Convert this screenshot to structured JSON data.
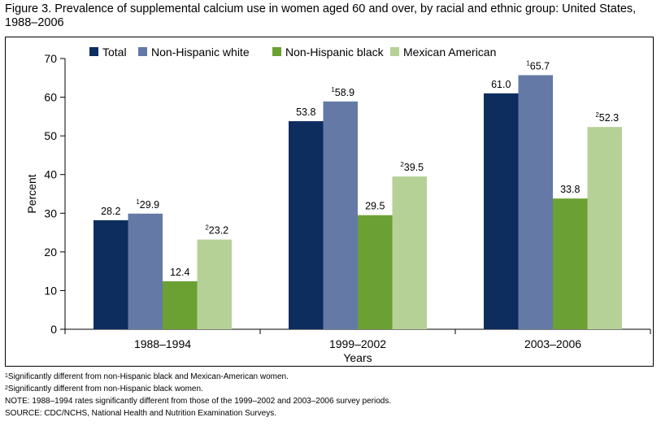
{
  "title": "Figure 3. Prevalence of supplemental calcium use in women aged 60 and over, by racial and ethnic group: United States, 1988–2006",
  "chart_data": {
    "type": "bar",
    "title": "Figure 3. Prevalence of supplemental calcium use in women aged 60 and over, by racial and ethnic group: United States, 1988–2006",
    "xlabel": "Years",
    "ylabel": "Percent",
    "ylim": [
      0,
      70
    ],
    "yticks": [
      0,
      10,
      20,
      30,
      40,
      50,
      60,
      70
    ],
    "grid": false,
    "legend_position": "top",
    "categories": [
      "1988–1994",
      "1999–2002",
      "2003–2006"
    ],
    "series": [
      {
        "name": "Total",
        "color": "#0c2d5e",
        "values": [
          28.2,
          53.8,
          61.0
        ],
        "labels": [
          "28.2",
          "53.8",
          "61.0"
        ],
        "marks": [
          "",
          "",
          ""
        ]
      },
      {
        "name": "Non-Hispanic white",
        "color": "#6479a6",
        "values": [
          29.9,
          58.9,
          65.7
        ],
        "labels": [
          "29.9",
          "58.9",
          "65.7"
        ],
        "marks": [
          "1",
          "1",
          "1"
        ]
      },
      {
        "name": "Non-Hispanic black",
        "color": "#6aa132",
        "values": [
          12.4,
          29.5,
          33.8
        ],
        "labels": [
          "12.4",
          "29.5",
          "33.8"
        ],
        "marks": [
          "",
          "",
          ""
        ]
      },
      {
        "name": "Mexican American",
        "color": "#b6d196",
        "values": [
          23.2,
          39.5,
          52.3
        ],
        "labels": [
          "23.2",
          "39.5",
          "52.3"
        ],
        "marks": [
          "2",
          "2",
          "2"
        ]
      }
    ]
  },
  "footnotes": [
    {
      "mark": "1",
      "text": "Significantly different from non-Hispanic black and Mexican-American women."
    },
    {
      "mark": "2",
      "text": "Significantly different from non-Hispanic black women."
    },
    {
      "mark": "",
      "text": "NOTE: 1988–1994 rates significantly different from those of the 1999–2002 and 2003–2006 survey periods."
    },
    {
      "mark": "",
      "text": "SOURCE: CDC/NCHS, National Health and Nutrition Examination Surveys."
    }
  ]
}
